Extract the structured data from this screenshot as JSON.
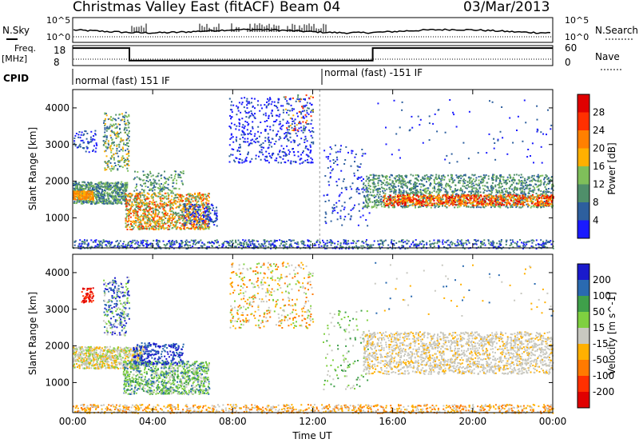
{
  "header": {
    "title": "Christmas Valley East (fitACF)",
    "beam": "Beam 04",
    "date": "03/Mar/2013"
  },
  "top_panels": {
    "nsky": {
      "left_label": "N.Sky",
      "left_ticks": [
        "10^5",
        "10^0"
      ],
      "right_ticks": [
        "10^5",
        "10^0"
      ],
      "right_label": "N.Search"
    },
    "freq": {
      "left_label_1": "Freq.",
      "left_label_2": "[MHz]",
      "left_ticks": [
        "18",
        "8"
      ],
      "right_ticks": [
        "60",
        "0"
      ],
      "right_label": "Nave"
    },
    "cpid": {
      "label": "CPID",
      "segments": [
        "normal (fast) 151 IF",
        "normal (fast) -151 IF"
      ]
    }
  },
  "power_panel": {
    "ylabel": "Slant Range [km]",
    "y_ticks": [
      "1000",
      "2000",
      "3000",
      "4000"
    ],
    "colorbar_label": "Power [dB]",
    "colorbar_ticks": [
      "4",
      "8",
      "12",
      "16",
      "20",
      "24",
      "28"
    ],
    "colors": [
      "#1a1aff",
      "#2d5f9e",
      "#4f8f6a",
      "#7fbf5a",
      "#ffb000",
      "#ff8000",
      "#ff3000",
      "#e00000"
    ]
  },
  "velocity_panel": {
    "ylabel": "Slant Range [km]",
    "y_ticks": [
      "1000",
      "2000",
      "3000",
      "4000"
    ],
    "colorbar_label": "Velocity [m s^-1]",
    "colorbar_ticks": [
      "200",
      "100",
      "50",
      "15",
      "-15",
      "-50",
      "-100",
      "-200"
    ],
    "colors": [
      "#1a1acc",
      "#2a6ab0",
      "#3fa04a",
      "#7fd040",
      "#c8c8c0",
      "#ffb000",
      "#ff7a00",
      "#ff3000",
      "#e00000"
    ]
  },
  "x_axis": {
    "ticks": [
      "00:00",
      "04:00",
      "08:00",
      "12:00",
      "16:00",
      "20:00",
      "00:00"
    ],
    "label": "Time UT"
  },
  "chart_data": {
    "type": "heatmap",
    "title": "Christmas Valley East (fitACF)",
    "xlabel": "Time UT",
    "ylabel": "Slant Range [km]",
    "xlim": [
      "00:00",
      "00:00"
    ],
    "ylim": [
      180,
      4500
    ],
    "freq_mhz_series": [
      {
        "t_from": "00:00",
        "t_to": "02:50",
        "value": 18
      },
      {
        "t_from": "02:50",
        "t_to": "15:00",
        "value": 8
      },
      {
        "t_from": "15:00",
        "t_to": "00:00",
        "value": 18
      }
    ],
    "cpid_segments": [
      {
        "t_from": "00:00",
        "t_to": "12:20",
        "name": "normal (fast) 151 IF"
      },
      {
        "t_from": "12:20",
        "t_to": "00:00",
        "name": "normal (fast) -151 IF"
      }
    ],
    "power_regions": [
      {
        "t": [
          0.0,
          2.5
        ],
        "r": [
          1400,
          2000
        ],
        "level": "mid"
      },
      {
        "t": [
          1.5,
          2.5
        ],
        "r": [
          2300,
          3800
        ],
        "level": "mid"
      },
      {
        "t": [
          2.5,
          7.0
        ],
        "r": [
          700,
          1800
        ],
        "level": "high"
      },
      {
        "t": [
          8.0,
          12.0
        ],
        "r": [
          2500,
          4300
        ],
        "level": "low"
      },
      {
        "t": [
          14.5,
          24.0
        ],
        "r": [
          1200,
          2100
        ],
        "level": "high"
      },
      {
        "t": [
          0.0,
          24.0
        ],
        "r": [
          180,
          400
        ],
        "level": "low"
      }
    ],
    "velocity_regions": [
      {
        "t": [
          0.0,
          3.5
        ],
        "r": [
          1300,
          2000
        ],
        "v": "-15..15"
      },
      {
        "t": [
          2.5,
          7.0
        ],
        "r": [
          700,
          1600
        ],
        "v": "15..100"
      },
      {
        "t": [
          0.5,
          1.0
        ],
        "r": [
          3200,
          3600
        ],
        "v": "-200"
      },
      {
        "t": [
          14.5,
          24.0
        ],
        "r": [
          1200,
          2400
        ],
        "v": "-15..15"
      },
      {
        "t": [
          0.0,
          24.0
        ],
        "r": [
          180,
          400
        ],
        "v": "-50"
      }
    ]
  }
}
